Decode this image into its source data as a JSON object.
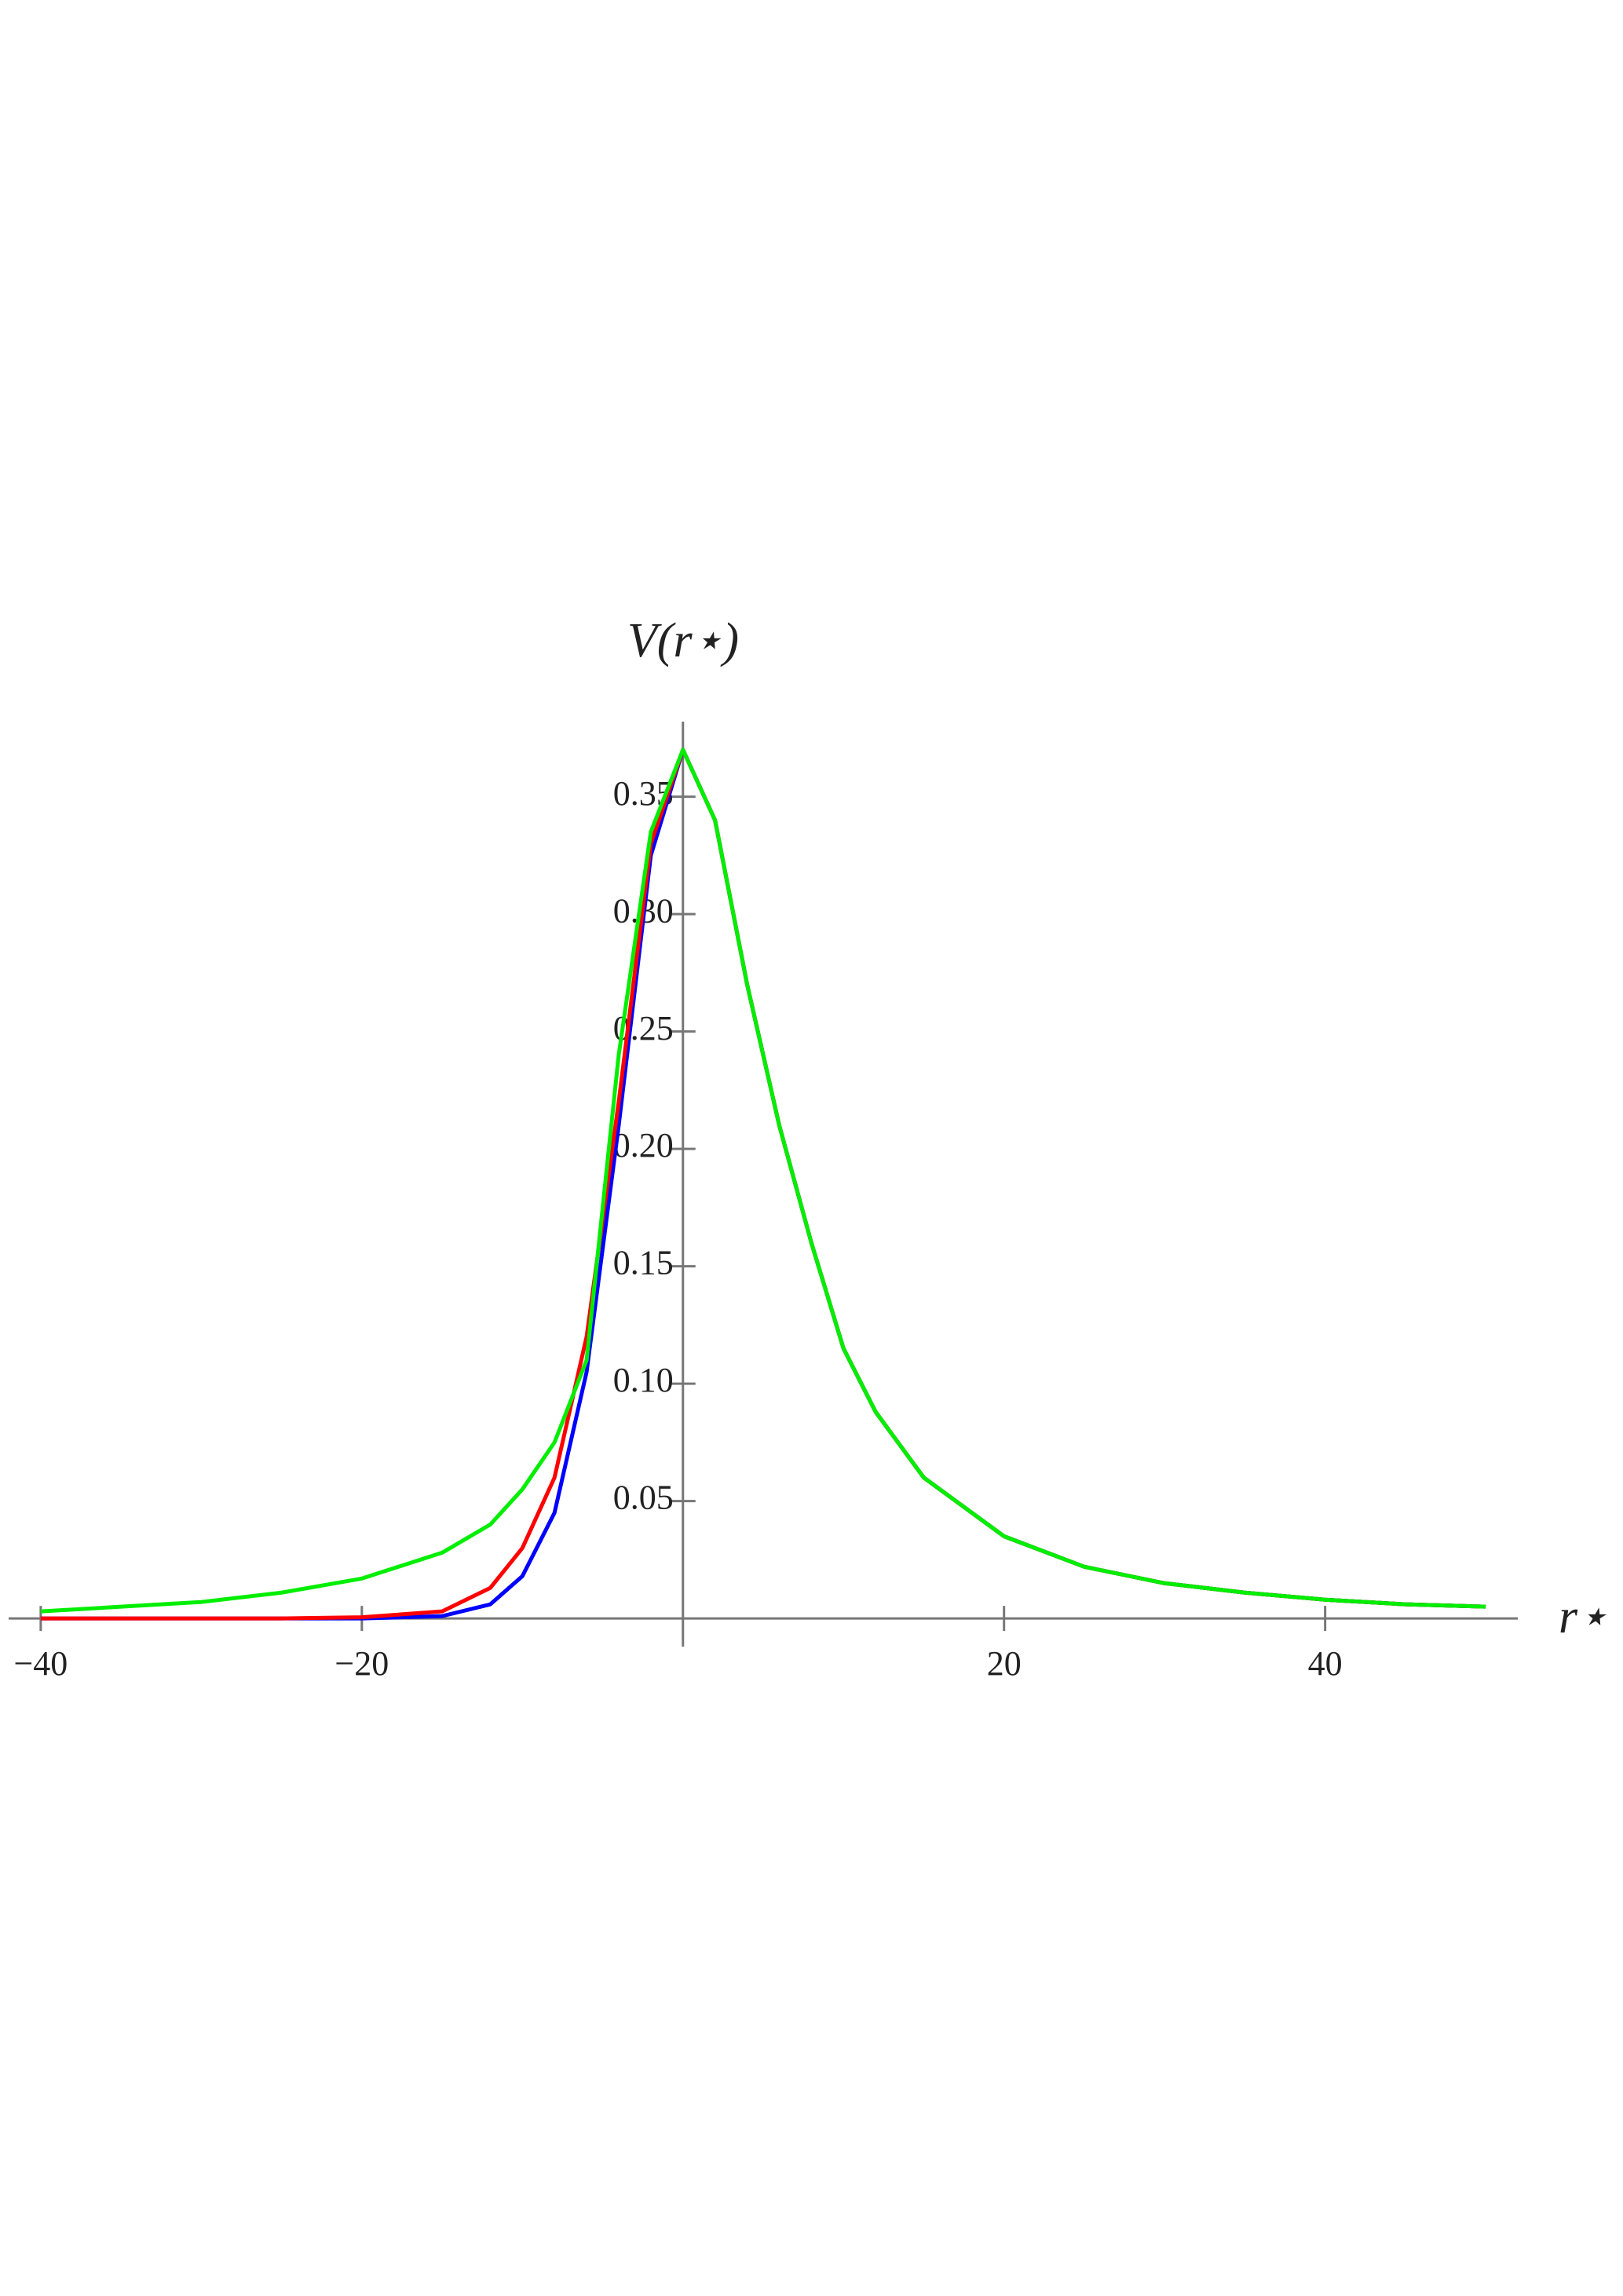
{
  "chart_data": {
    "type": "line",
    "x_label": "r⋆",
    "y_label": "V(r⋆)",
    "x": [
      -40,
      -35,
      -30,
      -25,
      -20,
      -15,
      -12,
      -10,
      -8,
      -6,
      -4,
      -2,
      0,
      2,
      4,
      6,
      8,
      10,
      12,
      15,
      20,
      25,
      30,
      35,
      40,
      45,
      50
    ],
    "series": [
      {
        "name": "blue",
        "color": "#0000ff",
        "values": [
          0,
          0,
          0,
          0,
          0,
          0.001,
          0.006,
          0.018,
          0.045,
          0.105,
          0.21,
          0.325,
          0.37,
          0.34,
          0.27,
          0.21,
          0.16,
          0.115,
          0.088,
          0.06,
          0.035,
          0.022,
          0.015,
          0.011,
          0.008,
          0.006,
          0.005
        ]
      },
      {
        "name": "red",
        "color": "#ff0000",
        "values": [
          0,
          0,
          0,
          0,
          0.0005,
          0.003,
          0.013,
          0.03,
          0.06,
          0.12,
          0.22,
          0.33,
          0.37,
          0.34,
          0.27,
          0.21,
          0.16,
          0.115,
          0.088,
          0.06,
          0.035,
          0.022,
          0.015,
          0.011,
          0.008,
          0.006,
          0.005
        ]
      },
      {
        "name": "green",
        "color": "#00ee00",
        "values": [
          0.003,
          0.005,
          0.007,
          0.011,
          0.017,
          0.028,
          0.04,
          0.055,
          0.075,
          0.11,
          0.24,
          0.335,
          0.37,
          0.34,
          0.27,
          0.21,
          0.16,
          0.115,
          0.088,
          0.06,
          0.035,
          0.022,
          0.015,
          0.011,
          0.008,
          0.006,
          0.005
        ]
      }
    ],
    "xlim": [
      -42,
      52
    ],
    "ylim": [
      -0.012,
      0.382
    ],
    "xticks": [
      {
        "value": -40,
        "label": "−40"
      },
      {
        "value": -20,
        "label": "−20"
      },
      20,
      40
    ],
    "yticks": [
      0.05,
      {
        "value": 0.1,
        "label": "0.10"
      },
      0.15,
      {
        "value": 0.2,
        "label": "0.20"
      },
      0.25,
      {
        "value": 0.3,
        "label": "0.30"
      },
      0.35
    ]
  }
}
